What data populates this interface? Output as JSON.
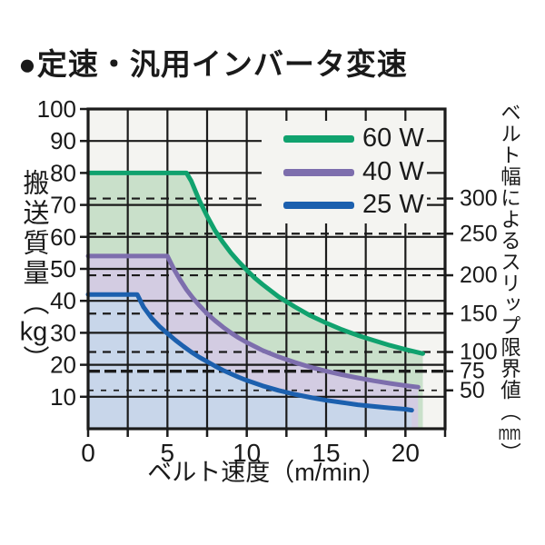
{
  "title": "●定速・汎用インバータ変速",
  "colors": {
    "plot_bg": "#f4f4f1",
    "grid": "#1b1b1b",
    "border": "#1b1b1b",
    "text": "#1a1a1a"
  },
  "chart_data": {
    "type": "line",
    "title": "定速・汎用インバータ変速",
    "xlabel": "ベルト速度（m/min）",
    "ylabel_left": {
      "text": "搬送質量",
      "unit_open": "（",
      "unit": "kg",
      "unit_close": "）"
    },
    "ylabel_right": {
      "text": "ベルト幅によるスリップ限界値",
      "unit_open": "（",
      "unit": "mm",
      "unit_close": "）"
    },
    "xlim": [
      0,
      22.5
    ],
    "ylim": [
      0,
      100
    ],
    "x_ticks": [
      0,
      5,
      10,
      15,
      20
    ],
    "x_minor_step": 2.5,
    "y_ticks": [
      10,
      20,
      30,
      40,
      50,
      60,
      70,
      80,
      90,
      100
    ],
    "grid": "solid black, vertical every 2.5 m/min, horizontal every 10 kg",
    "legend_position": "top-right-inside",
    "right_axis_marks": [
      {
        "label": "300",
        "kg": 72,
        "style": "normal"
      },
      {
        "label": "250",
        "kg": 61,
        "style": "normal"
      },
      {
        "label": "200",
        "kg": 48,
        "style": "normal"
      },
      {
        "label": "150",
        "kg": 36,
        "style": "normal"
      },
      {
        "label": "100",
        "kg": 24,
        "style": "normal"
      },
      {
        "label": "75",
        "kg": 18,
        "style": "bold"
      },
      {
        "label": "50",
        "kg": 12,
        "style": "thin"
      }
    ],
    "series": [
      {
        "name": "60 W",
        "power_w": 60,
        "color": "#10a26e",
        "fill": "#c9e0ca",
        "flat_kg": 80,
        "flat_until_x": 6.2,
        "end_x": 21.1,
        "points": [
          [
            0,
            80
          ],
          [
            6.2,
            80
          ],
          [
            6.5,
            77.5
          ],
          [
            7,
            71.5
          ],
          [
            7.5,
            66.5
          ],
          [
            8,
            62
          ],
          [
            8.5,
            58.3
          ],
          [
            9,
            55
          ],
          [
            9.5,
            52.2
          ],
          [
            10,
            49.6
          ],
          [
            10.5,
            47.2
          ],
          [
            11,
            45.1
          ],
          [
            12,
            41.3
          ],
          [
            13,
            38.2
          ],
          [
            14,
            35.4
          ],
          [
            15,
            33.1
          ],
          [
            16,
            31
          ],
          [
            17,
            29.2
          ],
          [
            18,
            27.6
          ],
          [
            19,
            26.1
          ],
          [
            20,
            24.8
          ],
          [
            21.1,
            23.5
          ]
        ]
      },
      {
        "name": "40 W",
        "power_w": 40,
        "color": "#7d6ead",
        "fill": "#d3cce2",
        "flat_kg": 54,
        "flat_until_x": 5.0,
        "end_x": 20.8,
        "points": [
          [
            0,
            54
          ],
          [
            5,
            54
          ],
          [
            5.4,
            50
          ],
          [
            5.8,
            46.6
          ],
          [
            6.2,
            43.5
          ],
          [
            6.6,
            40.9
          ],
          [
            7,
            38.6
          ],
          [
            7.5,
            36
          ],
          [
            8,
            33.8
          ],
          [
            8.5,
            31.8
          ],
          [
            9,
            30
          ],
          [
            9.5,
            28.4
          ],
          [
            10,
            27
          ],
          [
            11,
            24.5
          ],
          [
            12,
            22.5
          ],
          [
            13,
            20.8
          ],
          [
            14,
            19.3
          ],
          [
            15,
            18
          ],
          [
            16,
            16.9
          ],
          [
            17,
            15.9
          ],
          [
            18,
            15
          ],
          [
            19,
            14.2
          ],
          [
            20,
            13.5
          ],
          [
            20.8,
            13
          ]
        ]
      },
      {
        "name": "25 W",
        "power_w": 25,
        "color": "#1c60ae",
        "fill": "#c8d6ea",
        "flat_kg": 42,
        "flat_until_x": 3.1,
        "end_x": 20.4,
        "points": [
          [
            0,
            42
          ],
          [
            3.1,
            42
          ],
          [
            3.5,
            38
          ],
          [
            4,
            34.6
          ],
          [
            4.5,
            32
          ],
          [
            5,
            29.8
          ],
          [
            5.5,
            27.7
          ],
          [
            6,
            25.8
          ],
          [
            6.5,
            24
          ],
          [
            7,
            22.4
          ],
          [
            7.5,
            21
          ],
          [
            8,
            19.6
          ],
          [
            8.5,
            18.3
          ],
          [
            9,
            17.2
          ],
          [
            9.5,
            16.1
          ],
          [
            10,
            15.1
          ],
          [
            11,
            13.4
          ],
          [
            12,
            12
          ],
          [
            13,
            10.8
          ],
          [
            14,
            9.8
          ],
          [
            15,
            8.9
          ],
          [
            16,
            8.2
          ],
          [
            17,
            7.5
          ],
          [
            18,
            7
          ],
          [
            19,
            6.5
          ],
          [
            20,
            6.1
          ],
          [
            20.4,
            5.8
          ]
        ]
      }
    ]
  }
}
